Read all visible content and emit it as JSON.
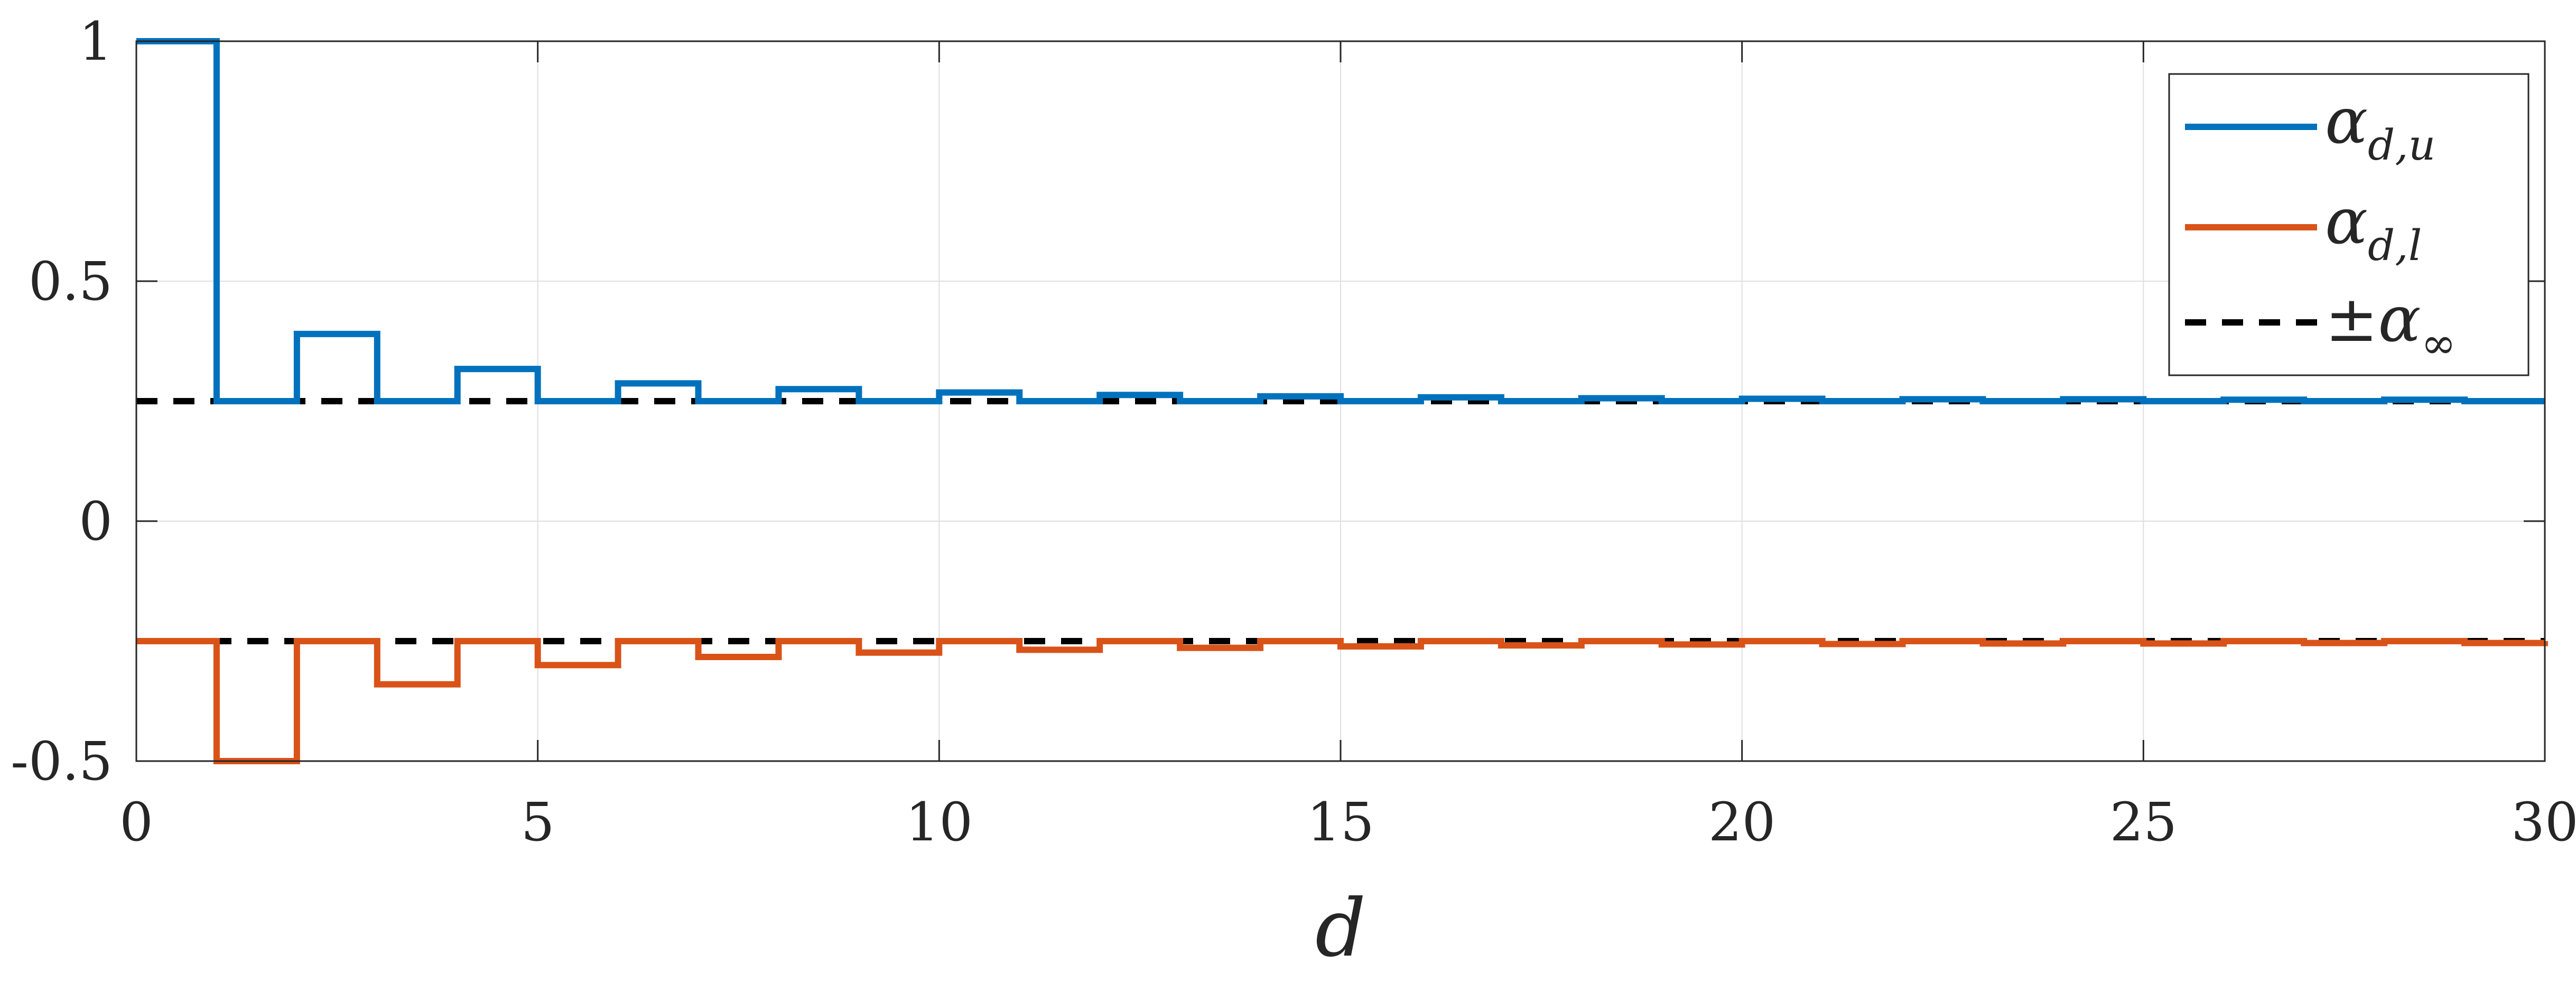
{
  "chart_data": {
    "type": "line",
    "step": true,
    "xlabel": "d",
    "xlim": [
      0,
      30
    ],
    "ylim": [
      -0.5,
      1
    ],
    "xticks": [
      0,
      5,
      10,
      15,
      20,
      25,
      30
    ],
    "yticks": [
      -0.5,
      0,
      0.5,
      1
    ],
    "xtick_labels": [
      "0",
      "5",
      "10",
      "15",
      "20",
      "25",
      "30"
    ],
    "ytick_labels": [
      "-0.5",
      "0",
      "0.5",
      "1"
    ],
    "grid": true,
    "legend_position": "top-right",
    "series": [
      {
        "name": "α_{d,u}",
        "legend_main": "α",
        "legend_sub": "d,u",
        "color": "#0072BD",
        "style": "solid",
        "x": [
          0,
          1,
          2,
          3,
          4,
          5,
          6,
          7,
          8,
          9,
          10,
          11,
          12,
          13,
          14,
          15,
          16,
          17,
          18,
          19,
          20,
          21,
          22,
          23,
          24,
          25,
          26,
          27,
          28,
          29,
          30
        ],
        "y": [
          1.0,
          0.25,
          0.39,
          0.25,
          0.317,
          0.25,
          0.287,
          0.25,
          0.275,
          0.25,
          0.268,
          0.25,
          0.263,
          0.25,
          0.26,
          0.25,
          0.258,
          0.25,
          0.256,
          0.25,
          0.255,
          0.25,
          0.254,
          0.25,
          0.254,
          0.25,
          0.253,
          0.25,
          0.253,
          0.25,
          0.25
        ]
      },
      {
        "name": "α_{d,l}",
        "legend_main": "α",
        "legend_sub": "d,l",
        "color": "#D95319",
        "style": "solid",
        "x": [
          0,
          1,
          2,
          3,
          4,
          5,
          6,
          7,
          8,
          9,
          10,
          11,
          12,
          13,
          14,
          15,
          16,
          17,
          18,
          19,
          20,
          21,
          22,
          23,
          24,
          25,
          26,
          27,
          28,
          29,
          30
        ],
        "y": [
          -0.25,
          -0.5,
          -0.25,
          -0.34,
          -0.25,
          -0.3,
          -0.25,
          -0.283,
          -0.25,
          -0.274,
          -0.25,
          -0.268,
          -0.25,
          -0.264,
          -0.25,
          -0.261,
          -0.25,
          -0.259,
          -0.25,
          -0.257,
          -0.25,
          -0.256,
          -0.25,
          -0.255,
          -0.25,
          -0.255,
          -0.25,
          -0.254,
          -0.25,
          -0.254,
          -0.25
        ]
      },
      {
        "name": "±α_∞",
        "legend_main": "±α",
        "legend_sub": "∞",
        "color": "#000000",
        "style": "dashed",
        "levels": [
          0.25,
          -0.25
        ]
      }
    ]
  }
}
